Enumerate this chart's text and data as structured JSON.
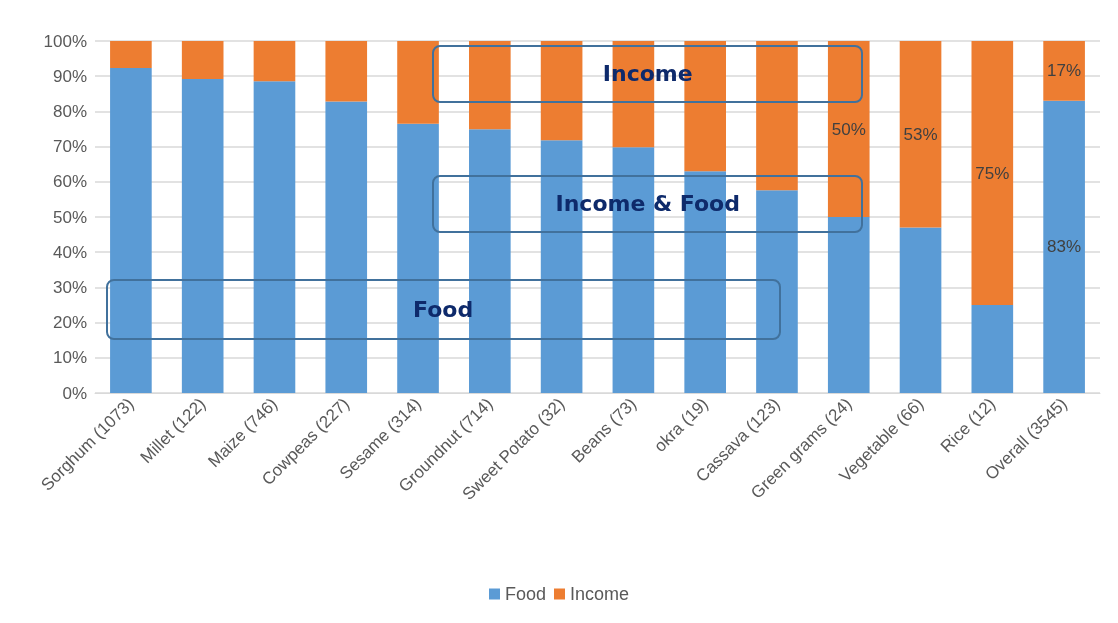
{
  "chart_data": {
    "type": "bar",
    "stacked": true,
    "categories": [
      "Sorghum (1073)",
      "Millet (122)",
      "Maize (746)",
      "Cowpeas (227)",
      "Sesame (314)",
      "Groundnut (714)",
      "Sweet Potato (32)",
      "Beans (73)",
      "okra (19)",
      "Cassava (123)",
      "Green grams (24)",
      "Vegetable (66)",
      "Rice (12)",
      "Overall (3545)"
    ],
    "series": [
      {
        "name": "Food",
        "color": "#5b9bd5",
        "values": [
          92.3,
          89.2,
          88.6,
          82.8,
          76.5,
          74.9,
          71.8,
          69.8,
          63,
          57.6,
          50,
          47,
          25,
          83
        ],
        "value_labels": [
          null,
          null,
          null,
          null,
          null,
          null,
          null,
          null,
          null,
          null,
          null,
          null,
          null,
          "83%"
        ]
      },
      {
        "name": "Income",
        "color": "#ed7d31",
        "values": [
          7.7,
          10.8,
          11.4,
          17.2,
          23.5,
          25.1,
          28.2,
          30.2,
          37,
          42.4,
          50,
          53,
          75,
          17
        ],
        "value_labels": [
          null,
          null,
          null,
          null,
          null,
          null,
          null,
          null,
          null,
          null,
          "50%",
          "53%",
          "75%",
          "17%"
        ]
      }
    ],
    "ylim": [
      0,
      100
    ],
    "yticks": [
      {
        "value": 0,
        "label": "0%"
      },
      {
        "value": 10,
        "label": "10%"
      },
      {
        "value": 20,
        "label": "20%"
      },
      {
        "value": 30,
        "label": "30%"
      },
      {
        "value": 40,
        "label": "40%"
      },
      {
        "value": 50,
        "label": "50%"
      },
      {
        "value": 60,
        "label": "60%"
      },
      {
        "value": 70,
        "label": "70%"
      },
      {
        "value": 80,
        "label": "80%"
      },
      {
        "value": 90,
        "label": "90%"
      },
      {
        "value": 100,
        "label": "100%"
      }
    ],
    "grid": "y",
    "legend": "bottom",
    "annotations": [
      "Income",
      "Income & Food",
      "Food"
    ]
  }
}
